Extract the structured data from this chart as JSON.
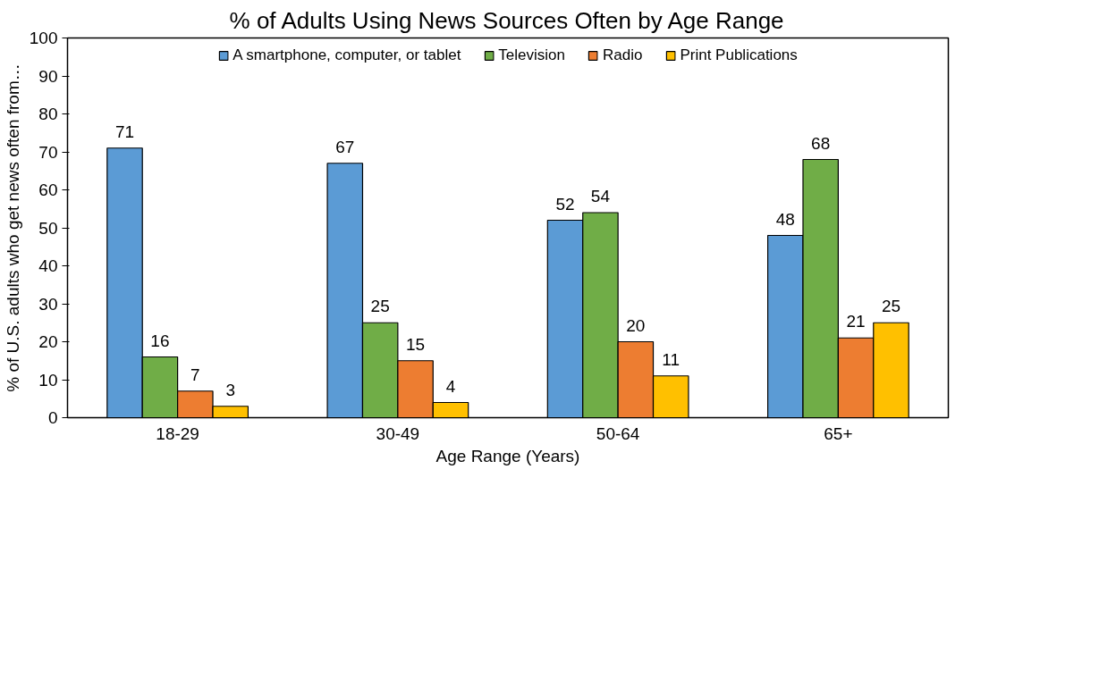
{
  "chart_data": {
    "type": "bar",
    "title": "% of Adults Using News Sources Often by Age Range",
    "xlabel": "Age Range (Years)",
    "ylabel": "% of U.S. adults who get news often from…",
    "categories": [
      "18-29",
      "30-49",
      "50-64",
      "65+"
    ],
    "series": [
      {
        "name": "A smartphone, computer, or tablet",
        "color": "#5b9bd5",
        "values": [
          71,
          67,
          52,
          48
        ]
      },
      {
        "name": "Television",
        "color": "#70ad47",
        "values": [
          16,
          25,
          54,
          68
        ]
      },
      {
        "name": "Radio",
        "color": "#ed7d31",
        "values": [
          7,
          15,
          20,
          21
        ]
      },
      {
        "name": "Print Publications",
        "color": "#ffc000",
        "values": [
          3,
          4,
          11,
          25
        ]
      }
    ],
    "ylim": [
      0,
      100
    ],
    "yticks": [
      0,
      10,
      20,
      30,
      40,
      50,
      60,
      70,
      80,
      90,
      100
    ],
    "grid": false,
    "legend": "top",
    "data_labels": true
  }
}
